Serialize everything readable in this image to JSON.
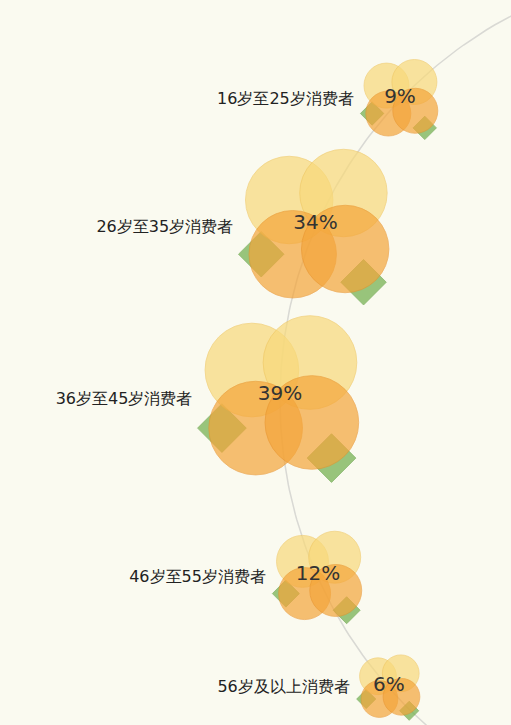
{
  "chart_data": {
    "type": "bubble",
    "categories": [
      "16岁至25岁消费者",
      "26岁至35岁消费者",
      "36岁至45岁消费者",
      "46岁至55岁消费者",
      "56岁及以上消费者"
    ],
    "values": [
      9,
      34,
      39,
      12,
      6
    ],
    "value_labels": [
      "9%",
      "34%",
      "39%",
      "12%",
      "6%"
    ],
    "data_labels": true,
    "tick_labels": false,
    "color": "#f4a53a"
  }
}
